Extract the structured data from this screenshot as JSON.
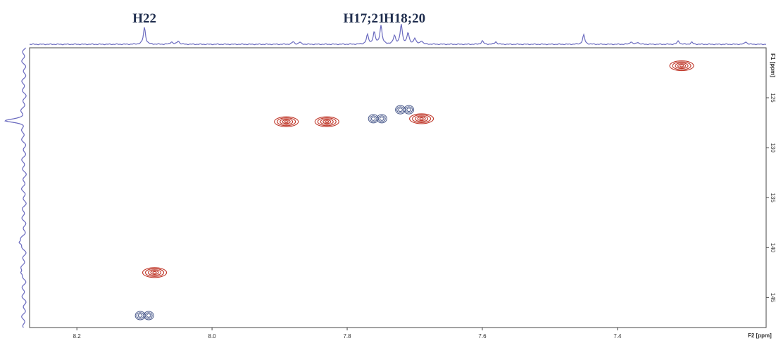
{
  "chart_data": {
    "type": "scatter",
    "chart_kind": "2D NMR contour spectrum (HSQC) with 1D projections",
    "x_axis": {
      "label": "F2 [ppm]",
      "range": [
        8.27,
        7.18
      ],
      "reversed": true,
      "ticks": [
        8.2,
        8.0,
        7.8,
        7.6,
        7.4
      ],
      "tick_labels": [
        "8.2",
        "8.0",
        "7.8",
        "7.6",
        "7.4"
      ]
    },
    "y_axis": {
      "label": "F1 [ppm]",
      "range": [
        120.0,
        148.0
      ],
      "ticks": [
        125,
        130,
        135,
        140,
        145
      ],
      "tick_labels": [
        "125",
        "130",
        "135",
        "140",
        "145"
      ],
      "side": "right"
    },
    "colors": {
      "positive_contour": "#c0392b",
      "negative_contour": "#4a5a8c",
      "projection": "#6a6abf",
      "label": "#1f2d4d"
    },
    "peak_labels": [
      {
        "text": "H22",
        "x": 8.1
      },
      {
        "text": "H17;21",
        "x": 7.775
      },
      {
        "text": "H18;20",
        "x": 7.715
      }
    ],
    "cross_peaks": [
      {
        "x": 7.305,
        "y": 121.8,
        "sign": "positive"
      },
      {
        "x": 7.89,
        "y": 127.4,
        "sign": "positive"
      },
      {
        "x": 7.83,
        "y": 127.4,
        "sign": "positive"
      },
      {
        "x": 7.755,
        "y": 127.1,
        "sign": "negative"
      },
      {
        "x": 7.715,
        "y": 126.2,
        "sign": "negative"
      },
      {
        "x": 7.69,
        "y": 127.1,
        "sign": "positive"
      },
      {
        "x": 8.085,
        "y": 142.5,
        "sign": "positive"
      },
      {
        "x": 8.1,
        "y": 146.8,
        "sign": "negative"
      }
    ],
    "f2_projection_peaks": [
      {
        "x": 8.1,
        "height": 1.0
      },
      {
        "x": 8.06,
        "height": 0.15
      },
      {
        "x": 8.05,
        "height": 0.2
      },
      {
        "x": 7.88,
        "height": 0.15
      },
      {
        "x": 7.87,
        "height": 0.12
      },
      {
        "x": 7.77,
        "height": 0.55
      },
      {
        "x": 7.76,
        "height": 0.7
      },
      {
        "x": 7.75,
        "height": 1.1
      },
      {
        "x": 7.73,
        "height": 0.5
      },
      {
        "x": 7.72,
        "height": 1.15
      },
      {
        "x": 7.71,
        "height": 0.65
      },
      {
        "x": 7.7,
        "height": 0.35
      },
      {
        "x": 7.69,
        "height": 0.2
      },
      {
        "x": 7.6,
        "height": 0.2
      },
      {
        "x": 7.58,
        "height": 0.15
      },
      {
        "x": 7.45,
        "height": 0.55
      },
      {
        "x": 7.38,
        "height": 0.15
      },
      {
        "x": 7.37,
        "height": 0.12
      },
      {
        "x": 7.31,
        "height": 0.2
      },
      {
        "x": 7.29,
        "height": 0.12
      },
      {
        "x": 7.21,
        "height": 0.15
      }
    ],
    "f1_projection_peaks": [
      {
        "y": 127.3,
        "height": 1.0
      },
      {
        "y": 139.5,
        "height": 0.3
      },
      {
        "y": 142.5,
        "height": 0.25
      }
    ],
    "grid": false,
    "legend": "none"
  }
}
